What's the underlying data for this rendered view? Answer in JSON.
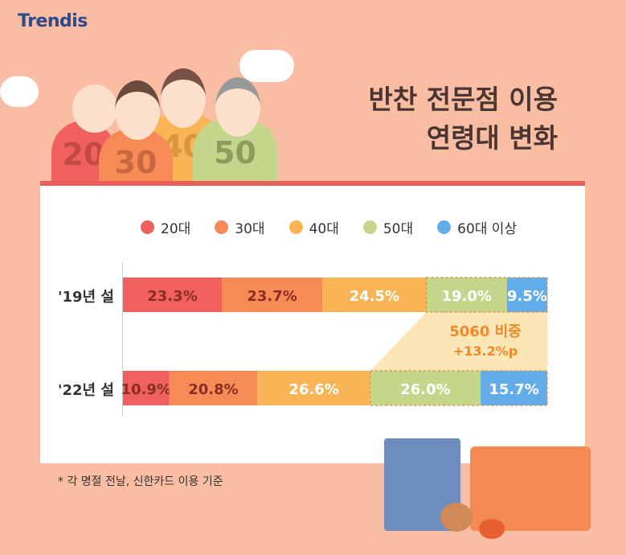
{
  "logo": "Trendis",
  "title": [
    "반찬 전문점 이용",
    "연령대 변화"
  ],
  "figure_labels": [
    "20",
    "30",
    "40",
    "50"
  ],
  "note": "* 각 명절 전날, 신한카드 이용 기준",
  "chart_data": {
    "type": "bar",
    "orientation": "horizontal-stacked-100",
    "categories": [
      "'19년 설",
      "'22년 설"
    ],
    "series": [
      {
        "name": "20대",
        "color": "#f0605d",
        "values": [
          23.3,
          10.9
        ]
      },
      {
        "name": "30대",
        "color": "#f68b58",
        "values": [
          23.7,
          20.8
        ]
      },
      {
        "name": "40대",
        "color": "#f8b455",
        "values": [
          24.5,
          26.6
        ]
      },
      {
        "name": "50대",
        "color": "#c4d68b",
        "values": [
          19.0,
          26.0
        ]
      },
      {
        "name": "60대 이상",
        "color": "#62ade9",
        "values": [
          9.5,
          15.7
        ]
      }
    ],
    "data_labels": [
      [
        "23.3%",
        "23.7%",
        "24.5%",
        "19.0%",
        "9.5%"
      ],
      [
        "10.9%",
        "20.8%",
        "26.6%",
        "26.0%",
        "15.7%"
      ]
    ],
    "annotation": {
      "line1": "5060 비중",
      "line2": "+13.2%p"
    },
    "xlim": [
      0,
      100
    ]
  }
}
